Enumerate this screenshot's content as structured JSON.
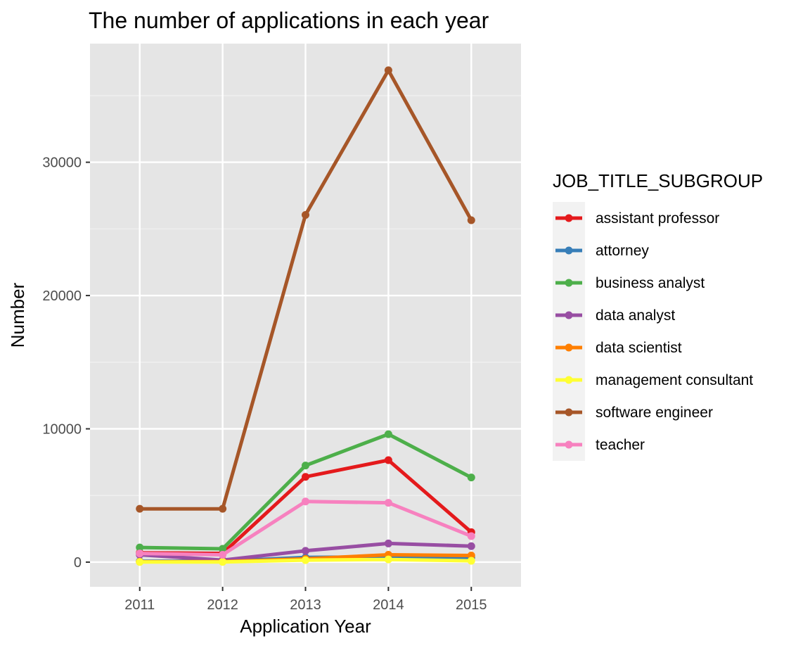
{
  "chart_data": {
    "type": "line",
    "title": "The number of applications in each year",
    "xlabel": "Application Year",
    "ylabel": "Number",
    "x": [
      2011,
      2012,
      2013,
      2014,
      2015
    ],
    "x_ticks": [
      "2011",
      "2012",
      "2013",
      "2014",
      "2015"
    ],
    "xlim": [
      2010.4,
      2015.6
    ],
    "y_ticks": [
      0,
      10000,
      20000,
      30000
    ],
    "y_tick_labels": [
      "0",
      "10000",
      "20000",
      "30000"
    ],
    "ylim": [
      -1850,
      38900
    ],
    "grid": true,
    "legend": {
      "title": "JOB_TITLE_SUBGROUP",
      "position": "right"
    },
    "series": [
      {
        "name": "assistant professor",
        "color": "#e41a1c",
        "values": [
          700,
          650,
          6400,
          7650,
          2250
        ]
      },
      {
        "name": "attorney",
        "color": "#377eb8",
        "values": [
          60,
          80,
          350,
          400,
          350
        ]
      },
      {
        "name": "business analyst",
        "color": "#4daf4a",
        "values": [
          1100,
          1000,
          7250,
          9600,
          6350
        ]
      },
      {
        "name": "data analyst",
        "color": "#984ea3",
        "values": [
          550,
          150,
          850,
          1400,
          1200
        ]
      },
      {
        "name": "data scientist",
        "color": "#ff7f00",
        "values": [
          30,
          40,
          250,
          550,
          500
        ]
      },
      {
        "name": "management consultant",
        "color": "#ffff33",
        "values": [
          10,
          15,
          150,
          200,
          100
        ]
      },
      {
        "name": "software engineer",
        "color": "#a65628",
        "values": [
          4000,
          4000,
          26050,
          36900,
          25650
        ]
      },
      {
        "name": "teacher",
        "color": "#f781bf",
        "values": [
          650,
          550,
          4550,
          4450,
          1950
        ]
      }
    ]
  }
}
